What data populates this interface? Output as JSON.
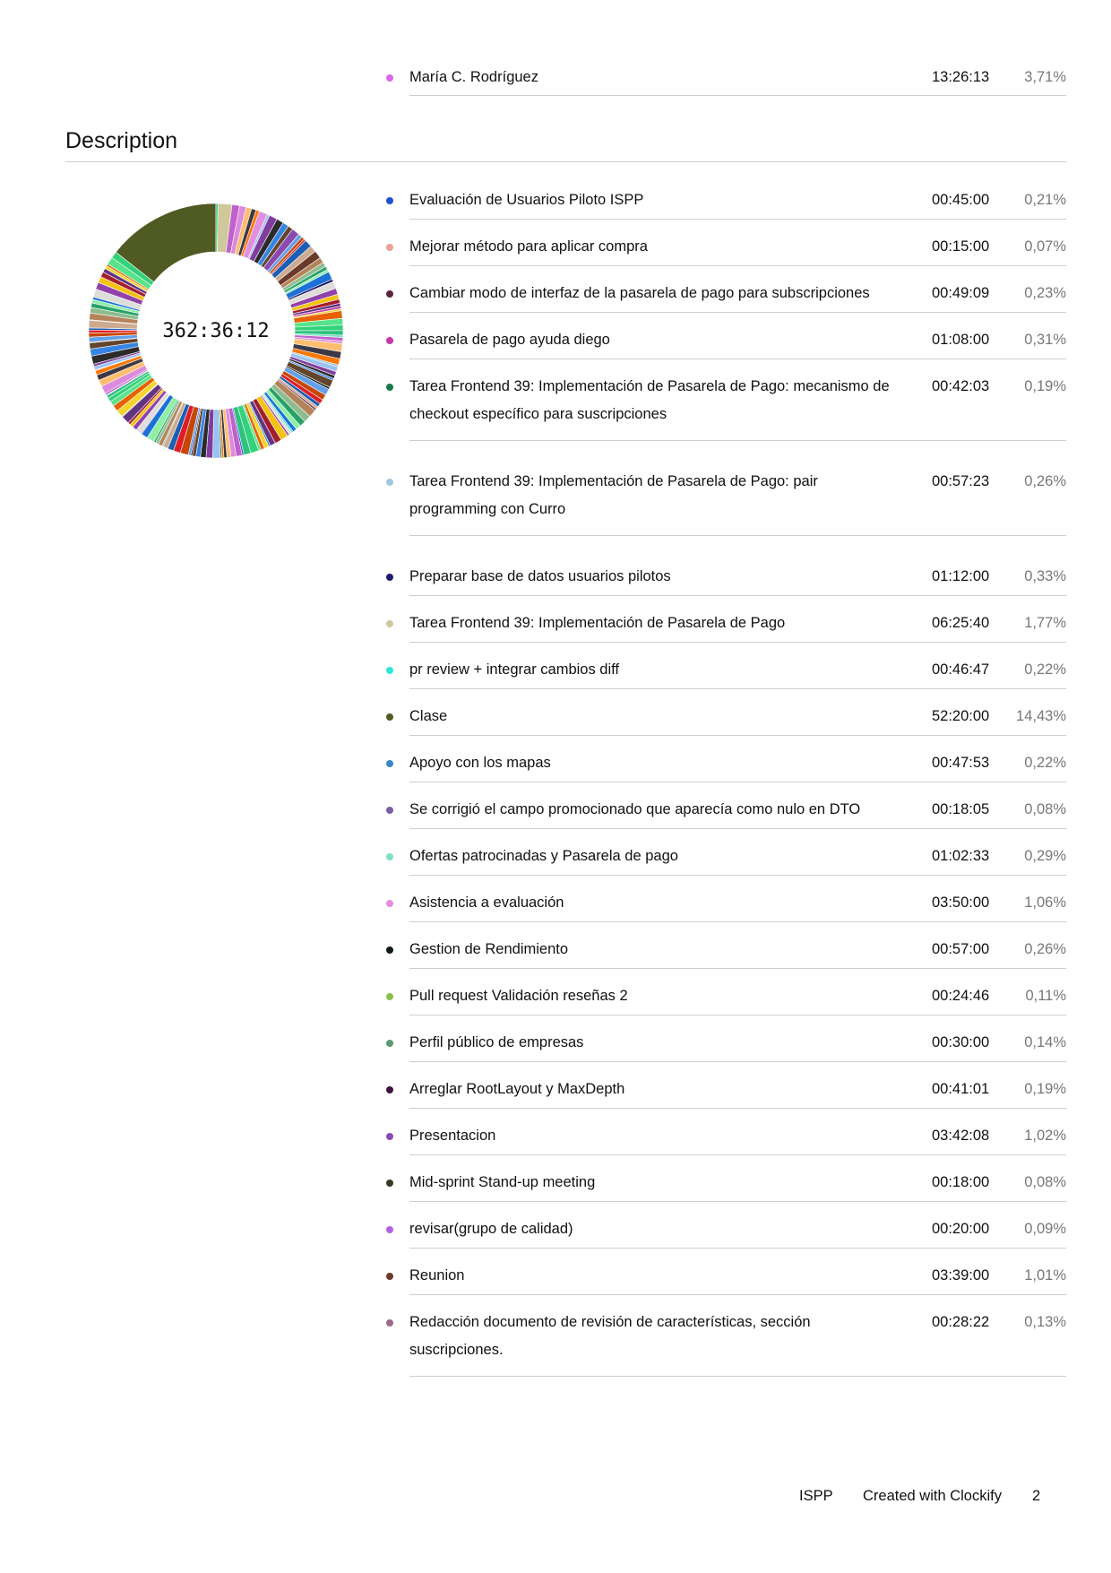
{
  "top_entry": {
    "label": "María C. Rodríguez",
    "time": "13:26:13",
    "pct": "3,71%",
    "color": "#d86ae6"
  },
  "section_title": "Description",
  "total": "362:36:12",
  "rows": [
    {
      "label": "Evaluación de Usuarios Piloto ISPP",
      "time": "00:45:00",
      "pct": "0,21%",
      "color": "#1f4fd1",
      "lines": 1
    },
    {
      "label": "Mejorar método para aplicar compra",
      "time": "00:15:00",
      "pct": "0,07%",
      "color": "#e8a39b",
      "lines": 1
    },
    {
      "label": "Cambiar modo de interfaz de la pasarela de pago para subscripciones",
      "time": "00:49:09",
      "pct": "0,23%",
      "color": "#5a2340",
      "lines": 1
    },
    {
      "label": "Pasarela de pago ayuda diego",
      "time": "01:08:00",
      "pct": "0,31%",
      "color": "#c43aa6",
      "lines": 1
    },
    {
      "label": "Tarea Frontend 39: Implementación de Pasarela de Pago: mecanismo de checkout específico para suscripciones",
      "time": "00:42:03",
      "pct": "0,19%",
      "color": "#19794a",
      "lines": 2
    },
    {
      "label": "Tarea Frontend 39: Implementación de Pasarela de Pago: pair programming con Curro",
      "time": "00:57:23",
      "pct": "0,26%",
      "color": "#9fc8dd",
      "lines": 2
    },
    {
      "label": "Preparar base de datos usuarios pilotos",
      "time": "01:12:00",
      "pct": "0,33%",
      "color": "#1d1b6e",
      "lines": 1
    },
    {
      "label": "Tarea Frontend 39: Implementación de Pasarela de Pago",
      "time": "06:25:40",
      "pct": "1,77%",
      "color": "#cfc89a",
      "lines": 1
    },
    {
      "label": "pr review + integrar cambios diff",
      "time": "00:46:47",
      "pct": "0,22%",
      "color": "#2ee6d8",
      "lines": 1
    },
    {
      "label": "Clase",
      "time": "52:20:00",
      "pct": "14,43%",
      "color": "#4f5b22",
      "lines": 1
    },
    {
      "label": "Apoyo con los mapas",
      "time": "00:47:53",
      "pct": "0,22%",
      "color": "#3c86c8",
      "lines": 1
    },
    {
      "label": "Se corrigió el campo promocionado que aparecía como nulo en DTO",
      "time": "00:18:05",
      "pct": "0,08%",
      "color": "#7a5ea8",
      "lines": 1
    },
    {
      "label": "Ofertas patrocinadas y Pasarela de pago",
      "time": "01:02:33",
      "pct": "0,29%",
      "color": "#7fe0c8",
      "lines": 1
    },
    {
      "label": "Asistencia a evaluación",
      "time": "03:50:00",
      "pct": "1,06%",
      "color": "#e48ee0",
      "lines": 1
    },
    {
      "label": "Gestion de Rendimiento",
      "time": "00:57:00",
      "pct": "0,26%",
      "color": "#0e1a14",
      "lines": 1
    },
    {
      "label": "Pull request Validación reseñas 2",
      "time": "00:24:46",
      "pct": "0,11%",
      "color": "#8cc04a",
      "lines": 1
    },
    {
      "label": "Perfil público de empresas",
      "time": "00:30:00",
      "pct": "0,14%",
      "color": "#5a9a72",
      "lines": 1
    },
    {
      "label": "Arreglar RootLayout y MaxDepth",
      "time": "00:41:01",
      "pct": "0,19%",
      "color": "#3d1440",
      "lines": 1
    },
    {
      "label": "Presentacion",
      "time": "03:42:08",
      "pct": "1,02%",
      "color": "#8a4ab0",
      "lines": 1
    },
    {
      "label": "Mid-sprint Stand-up meeting",
      "time": "00:18:00",
      "pct": "0,08%",
      "color": "#3a3a22",
      "lines": 1
    },
    {
      "label": "revisar(grupo de calidad)",
      "time": "00:20:00",
      "pct": "0,09%",
      "color": "#b562e0",
      "lines": 1
    },
    {
      "label": "Reunion",
      "time": "03:39:00",
      "pct": "1,01%",
      "color": "#6b3a2a",
      "lines": 1
    },
    {
      "label": "Redacción documento de revisión de características, sección suscripciones.",
      "time": "00:28:22",
      "pct": "0,13%",
      "color": "#9a6a8a",
      "lines": 2
    }
  ],
  "chart_data": {
    "type": "pie",
    "center_label": "362:36:12",
    "slices": [
      {
        "name": "Clase",
        "value": 14.43,
        "color": "#4f5b22"
      },
      {
        "name": "Tarea Frontend 39: Implementación de Pasarela de Pago",
        "value": 1.77,
        "color": "#cfc89a"
      },
      {
        "name": "Asistencia a evaluación",
        "value": 1.06,
        "color": "#e48ee0"
      },
      {
        "name": "Presentacion",
        "value": 1.02,
        "color": "#8a4ab0"
      },
      {
        "name": "Reunion",
        "value": 1.01,
        "color": "#6b3a2a"
      },
      {
        "name": "Preparar base de datos usuarios pilotos",
        "value": 0.33,
        "color": "#1d1b6e"
      },
      {
        "name": "Pasarela de pago ayuda diego",
        "value": 0.31,
        "color": "#c43aa6"
      },
      {
        "name": "Ofertas patrocinadas y Pasarela de pago",
        "value": 0.29,
        "color": "#7fe0c8"
      },
      {
        "name": "Tarea Frontend 39: Implementación de Pasarela de Pago: pair programming con Curro",
        "value": 0.26,
        "color": "#9fc8dd"
      },
      {
        "name": "Gestion de Rendimiento",
        "value": 0.26,
        "color": "#0e1a14"
      },
      {
        "name": "Cambiar modo de interfaz de la pasarela de pago para subscripciones",
        "value": 0.23,
        "color": "#5a2340"
      },
      {
        "name": "pr review + integrar cambios diff",
        "value": 0.22,
        "color": "#2ee6d8"
      },
      {
        "name": "Apoyo con los mapas",
        "value": 0.22,
        "color": "#3c86c8"
      },
      {
        "name": "Evaluación de Usuarios Piloto ISPP",
        "value": 0.21,
        "color": "#1f4fd1"
      },
      {
        "name": "Tarea Frontend 39: Implementación de Pasarela de Pago: mecanismo de checkout específico para suscripciones",
        "value": 0.19,
        "color": "#19794a"
      },
      {
        "name": "Arreglar RootLayout y MaxDepth",
        "value": 0.19,
        "color": "#3d1440"
      },
      {
        "name": "Perfil público de empresas",
        "value": 0.14,
        "color": "#5a9a72"
      },
      {
        "name": "Redacción documento de revisión de características, sección suscripciones.",
        "value": 0.13,
        "color": "#9a6a8a"
      },
      {
        "name": "Pull request Validación reseñas 2",
        "value": 0.11,
        "color": "#8cc04a"
      },
      {
        "name": "revisar(grupo de calidad)",
        "value": 0.09,
        "color": "#b562e0"
      },
      {
        "name": "Se corrigió el campo promocionado que aparecía como nulo en DTO",
        "value": 0.08,
        "color": "#7a5ea8"
      },
      {
        "name": "Mid-sprint Stand-up meeting",
        "value": 0.08,
        "color": "#3a3a22"
      },
      {
        "name": "Mejorar método para aplicar compra",
        "value": 0.07,
        "color": "#e8a39b"
      }
    ]
  },
  "footer": {
    "project": "ISPP",
    "created": "Created with Clockify",
    "page": "2"
  }
}
